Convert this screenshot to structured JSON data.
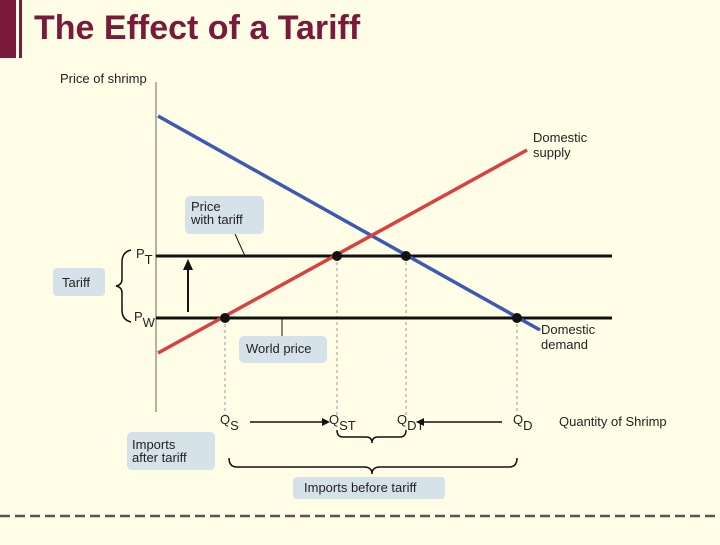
{
  "slide": {
    "title": "The Effect of a Tariff",
    "accent_color": "#7a1a3a",
    "background_color": "#fffde6"
  },
  "diagram": {
    "y_axis_label": "Price of shrimp",
    "x_axis_label": "Quantity of Shrimp",
    "supply_label": [
      "Domestic",
      "supply"
    ],
    "demand_label": [
      "Domestic",
      "demand"
    ],
    "price_with_tariff_label": [
      "Price",
      "with tariff"
    ],
    "world_price_label": "World price",
    "tariff_label": "Tariff",
    "pt_label": {
      "main": "P",
      "sub": "T"
    },
    "pw_label": {
      "main": "P",
      "sub": "W"
    },
    "qs_label": {
      "main": "Q",
      "sub": "S"
    },
    "qst_label": {
      "main": "Q",
      "sub": "ST"
    },
    "qdt_label": {
      "main": "Q",
      "sub": "DT"
    },
    "qd_label": {
      "main": "Q",
      "sub": "D"
    },
    "imports_after_label": [
      "Imports",
      "after tariff"
    ],
    "imports_before_label": "Imports before tariff",
    "supply_color": "#d94040",
    "demand_color": "#3a5ab4",
    "callout_fill": "#d6e2ea"
  }
}
